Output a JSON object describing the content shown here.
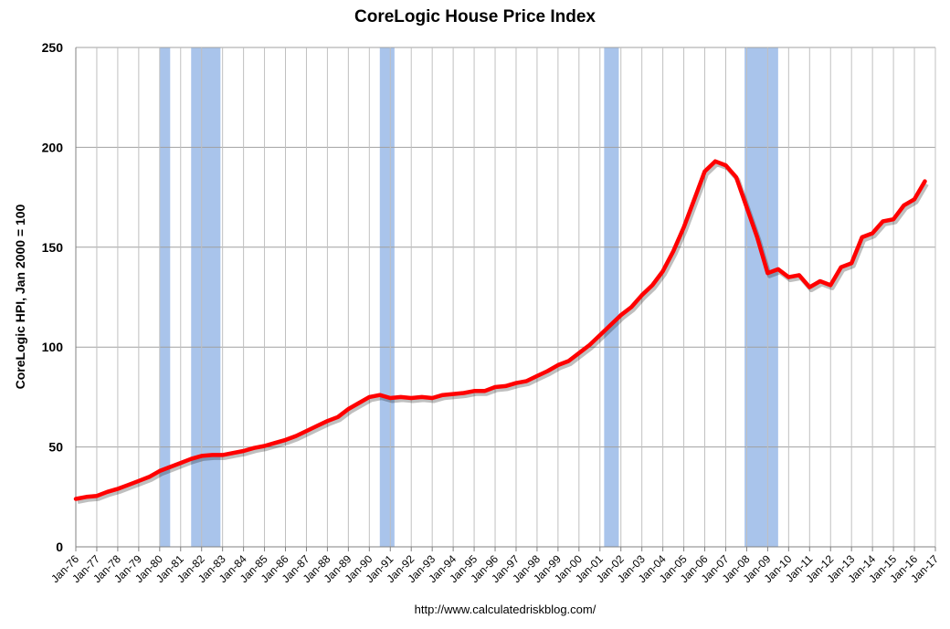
{
  "chart_data": {
    "type": "line",
    "title": "CoreLogic House Price Index",
    "y_label": "CoreLogic HPI, Jan 2000 = 100",
    "source": "http://www.calculatedriskblog.com/",
    "categories": [
      "Jan-76",
      null,
      "Jan-77",
      null,
      "Jan-78",
      null,
      "Jan-79",
      null,
      "Jan-80",
      null,
      "Jan-81",
      null,
      "Jan-82",
      null,
      "Jan-83",
      null,
      "Jan-84",
      null,
      "Jan-85",
      null,
      "Jan-86",
      null,
      "Jan-87",
      null,
      "Jan-88",
      null,
      "Jan-89",
      null,
      "Jan-90",
      null,
      "Jan-91",
      null,
      "Jan-92",
      null,
      "Jan-93",
      null,
      "Jan-94",
      null,
      "Jan-95",
      null,
      "Jan-96",
      null,
      "Jan-97",
      null,
      "Jan-98",
      null,
      "Jan-99",
      null,
      "Jan-00",
      null,
      "Jan-01",
      null,
      "Jan-02",
      null,
      "Jan-03",
      null,
      "Jan-04",
      null,
      "Jan-05",
      null,
      "Jan-06",
      null,
      "Jan-07",
      null,
      "Jan-08",
      null,
      "Jan-09",
      null,
      "Jan-10",
      null,
      "Jan-11",
      null,
      "Jan-12",
      null,
      "Jan-13",
      null,
      "Jan-14",
      null,
      "Jan-15",
      null,
      "Jan-16",
      null,
      "Jan-17"
    ],
    "series": [
      {
        "name": "CoreLogic HPI",
        "color": "#ff0000",
        "values": [
          24,
          25,
          25.5,
          27.5,
          29,
          31,
          33,
          35,
          38,
          40,
          42,
          44,
          45.5,
          46,
          46,
          47,
          48,
          49.5,
          50.5,
          52,
          53.5,
          55.5,
          58,
          60.5,
          63,
          65,
          69,
          72,
          75,
          76,
          74.5,
          75,
          74.5,
          75,
          74.5,
          76,
          76.5,
          77,
          78,
          78,
          80,
          80.5,
          82,
          83,
          85.5,
          88,
          91,
          93,
          97,
          101,
          106,
          111,
          116,
          120,
          126,
          131,
          138,
          148,
          160,
          174,
          188,
          193,
          191,
          185,
          170,
          155,
          137,
          139,
          135,
          136,
          130,
          133,
          131,
          140,
          142,
          155,
          157,
          163,
          164,
          171,
          174,
          183,
          null
        ]
      }
    ],
    "xlim": [
      1976,
      2017
    ],
    "shaded_periods": [
      [
        1980.0,
        1980.5
      ],
      [
        1981.5,
        1982.9
      ],
      [
        1990.5,
        1991.2
      ],
      [
        2001.2,
        2001.9
      ],
      [
        2007.9,
        2009.5
      ]
    ],
    "shade_color": "#a9c4eb",
    "ylim": [
      0,
      250
    ],
    "yticks": [
      0,
      50,
      100,
      150,
      200,
      250
    ],
    "grid": true
  }
}
